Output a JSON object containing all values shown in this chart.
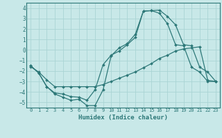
{
  "xlabel": "Humidex (Indice chaleur)",
  "bg_color": "#c8e8e8",
  "line_color": "#2d7878",
  "grid_color": "#aad4d4",
  "xlim": [
    -0.5,
    23.5
  ],
  "ylim": [
    -5.5,
    4.5
  ],
  "yticks": [
    -5,
    -4,
    -3,
    -2,
    -1,
    0,
    1,
    2,
    3,
    4
  ],
  "xticks": [
    0,
    1,
    2,
    3,
    4,
    5,
    6,
    7,
    8,
    9,
    10,
    11,
    12,
    13,
    14,
    15,
    16,
    17,
    18,
    19,
    20,
    21,
    22,
    23
  ],
  "curve1_x": [
    0,
    1,
    2,
    3,
    4,
    5,
    6,
    7,
    8,
    9,
    10,
    11,
    12,
    13,
    14,
    15,
    16,
    17,
    18,
    19,
    20,
    21,
    22,
    23
  ],
  "curve1_y": [
    -1.5,
    -2.2,
    -3.5,
    -4.2,
    -4.5,
    -4.8,
    -4.7,
    -5.3,
    -5.3,
    -3.8,
    -0.55,
    0.2,
    0.6,
    1.5,
    3.7,
    3.75,
    3.8,
    3.2,
    2.4,
    0.5,
    0.4,
    -1.65,
    -2.1,
    -3.0
  ],
  "curve2_x": [
    0,
    1,
    2,
    3,
    4,
    5,
    6,
    7,
    8,
    9,
    10,
    11,
    12,
    13,
    14,
    15,
    16,
    17,
    18,
    19,
    20,
    21,
    22,
    23
  ],
  "curve2_y": [
    -1.5,
    -2.2,
    -3.5,
    -4.1,
    -4.2,
    -4.45,
    -4.5,
    -4.8,
    -3.8,
    -1.4,
    -0.5,
    -0.1,
    0.5,
    1.2,
    3.7,
    3.75,
    3.5,
    2.5,
    0.5,
    0.4,
    -1.65,
    -2.1,
    -3.0,
    -3.0
  ],
  "curve3_x": [
    0,
    1,
    2,
    3,
    4,
    5,
    6,
    7,
    8,
    9,
    10,
    11,
    12,
    13,
    14,
    15,
    16,
    17,
    18,
    19,
    20,
    21,
    22,
    23
  ],
  "curve3_y": [
    -1.6,
    -2.1,
    -2.85,
    -3.5,
    -3.5,
    -3.5,
    -3.5,
    -3.5,
    -3.5,
    -3.3,
    -3.0,
    -2.7,
    -2.4,
    -2.1,
    -1.7,
    -1.3,
    -0.8,
    -0.5,
    -0.1,
    0.1,
    0.2,
    0.3,
    -2.9,
    -3.0
  ]
}
